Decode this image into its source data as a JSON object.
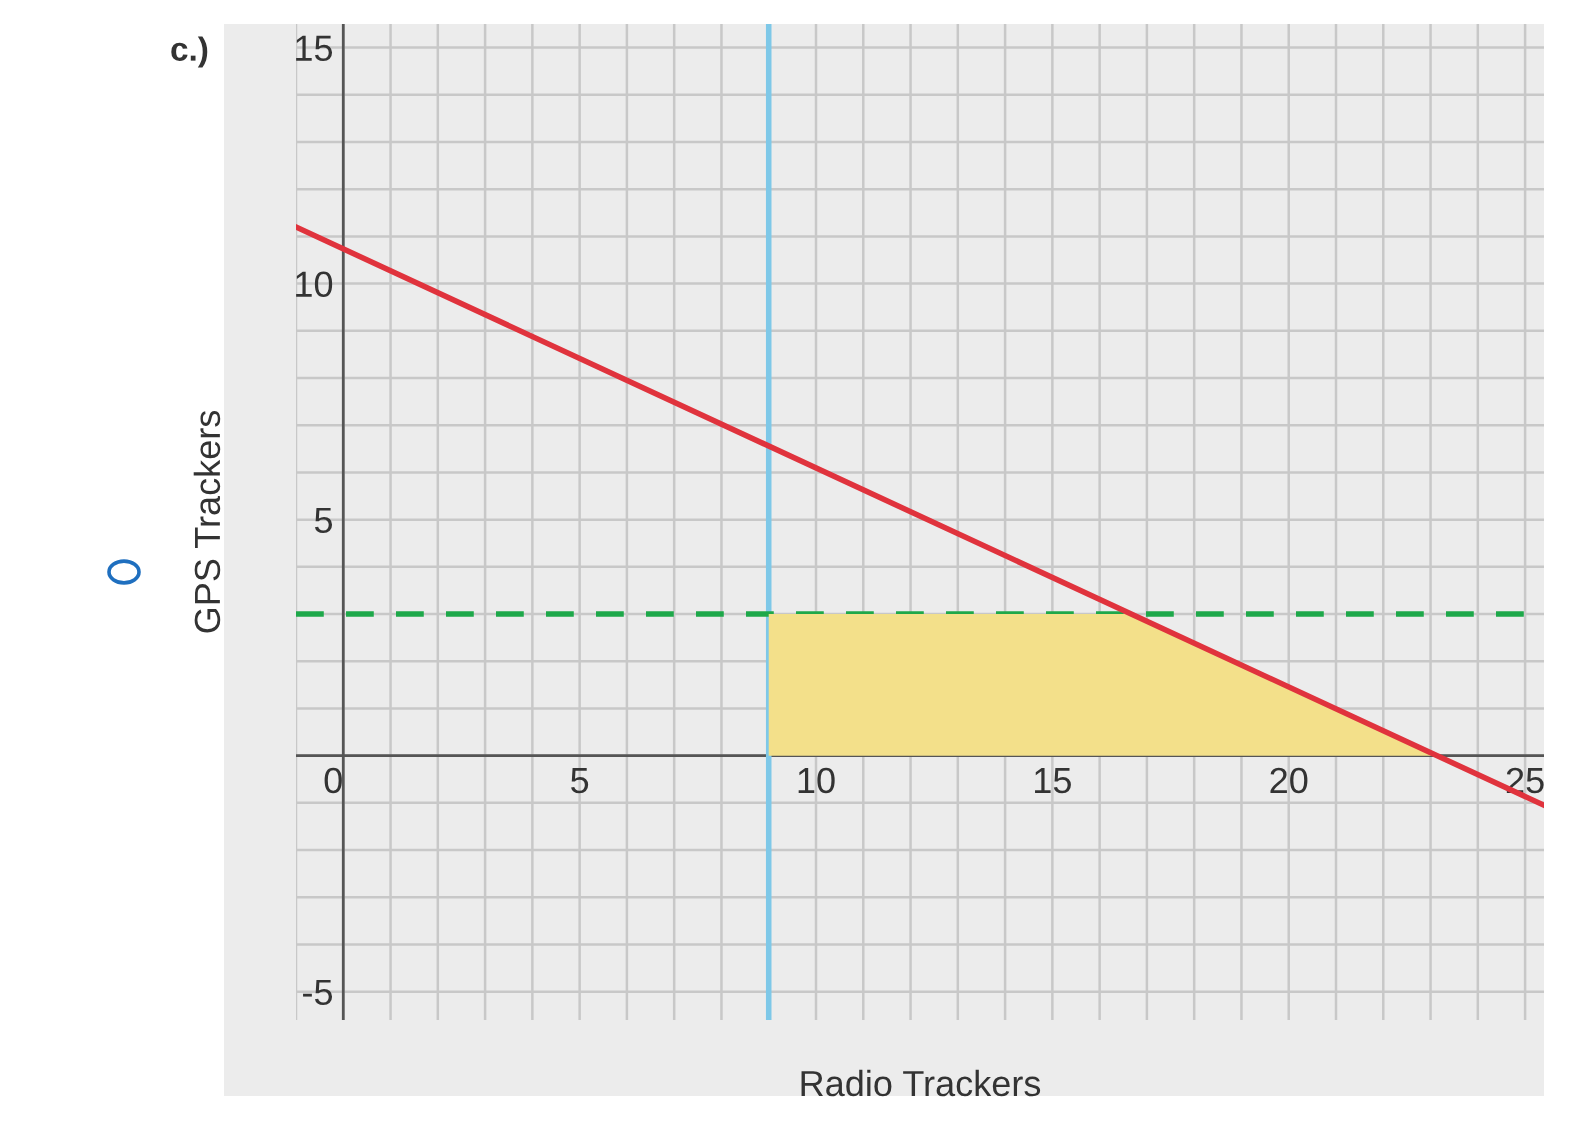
{
  "chart_data": {
    "type": "line",
    "xlabel": "Radio Trackers",
    "ylabel": "GPS Trackers",
    "annotations": [
      "c.)"
    ],
    "series": [
      {
        "type": "area",
        "color": "#f3e08a",
        "x": [
          9,
          16.7,
          23.1
        ],
        "values": [
          3,
          3,
          0
        ]
      },
      {
        "color": "#e0333d",
        "x": [
          -1,
          25.4
        ],
        "values": [
          11.2,
          -1.05
        ]
      }
    ],
    "ref_lines": [
      {
        "axis": "x",
        "value": 9,
        "color": "#7ec8e8",
        "line_style": "solid"
      },
      {
        "axis": "y",
        "value": 3,
        "color": "#1ea84a",
        "line_style": "dashed"
      }
    ],
    "xlim": [
      -1,
      25.4
    ],
    "ylim": [
      -5.6,
      15.5
    ],
    "xticks": [
      {
        "value": -1,
        "label": null
      },
      0,
      {
        "value": 1,
        "label": null
      },
      {
        "value": 2,
        "label": null
      },
      {
        "value": 3,
        "label": null
      },
      {
        "value": 4,
        "label": null
      },
      5,
      {
        "value": 6,
        "label": null
      },
      {
        "value": 7,
        "label": null
      },
      {
        "value": 8,
        "label": null
      },
      {
        "value": 9,
        "label": null
      },
      10,
      {
        "value": 11,
        "label": null
      },
      {
        "value": 12,
        "label": null
      },
      {
        "value": 13,
        "label": null
      },
      {
        "value": 14,
        "label": null
      },
      15,
      {
        "value": 16,
        "label": null
      },
      {
        "value": 17,
        "label": null
      },
      {
        "value": 18,
        "label": null
      },
      {
        "value": 19,
        "label": null
      },
      20,
      {
        "value": 21,
        "label": null
      },
      {
        "value": 22,
        "label": null
      },
      {
        "value": 23,
        "label": null
      },
      {
        "value": 24,
        "label": null
      },
      25
    ],
    "yticks": [
      -5,
      {
        "value": -4,
        "label": null
      },
      {
        "value": -3,
        "label": null
      },
      {
        "value": -2,
        "label": null
      },
      {
        "value": -1,
        "label": null
      },
      {
        "value": 0,
        "label": null
      },
      {
        "value": 1,
        "label": null
      },
      {
        "value": 2,
        "label": null
      },
      {
        "value": 3,
        "label": null
      },
      {
        "value": 4,
        "label": null
      },
      5,
      {
        "value": 6,
        "label": null
      },
      {
        "value": 7,
        "label": null
      },
      {
        "value": 8,
        "label": null
      },
      {
        "value": 9,
        "label": null
      },
      10,
      {
        "value": 11,
        "label": null
      },
      {
        "value": 12,
        "label": null
      },
      {
        "value": 13,
        "label": null
      },
      {
        "value": 14,
        "label": null
      },
      15
    ],
    "grid": true,
    "legend": false
  }
}
